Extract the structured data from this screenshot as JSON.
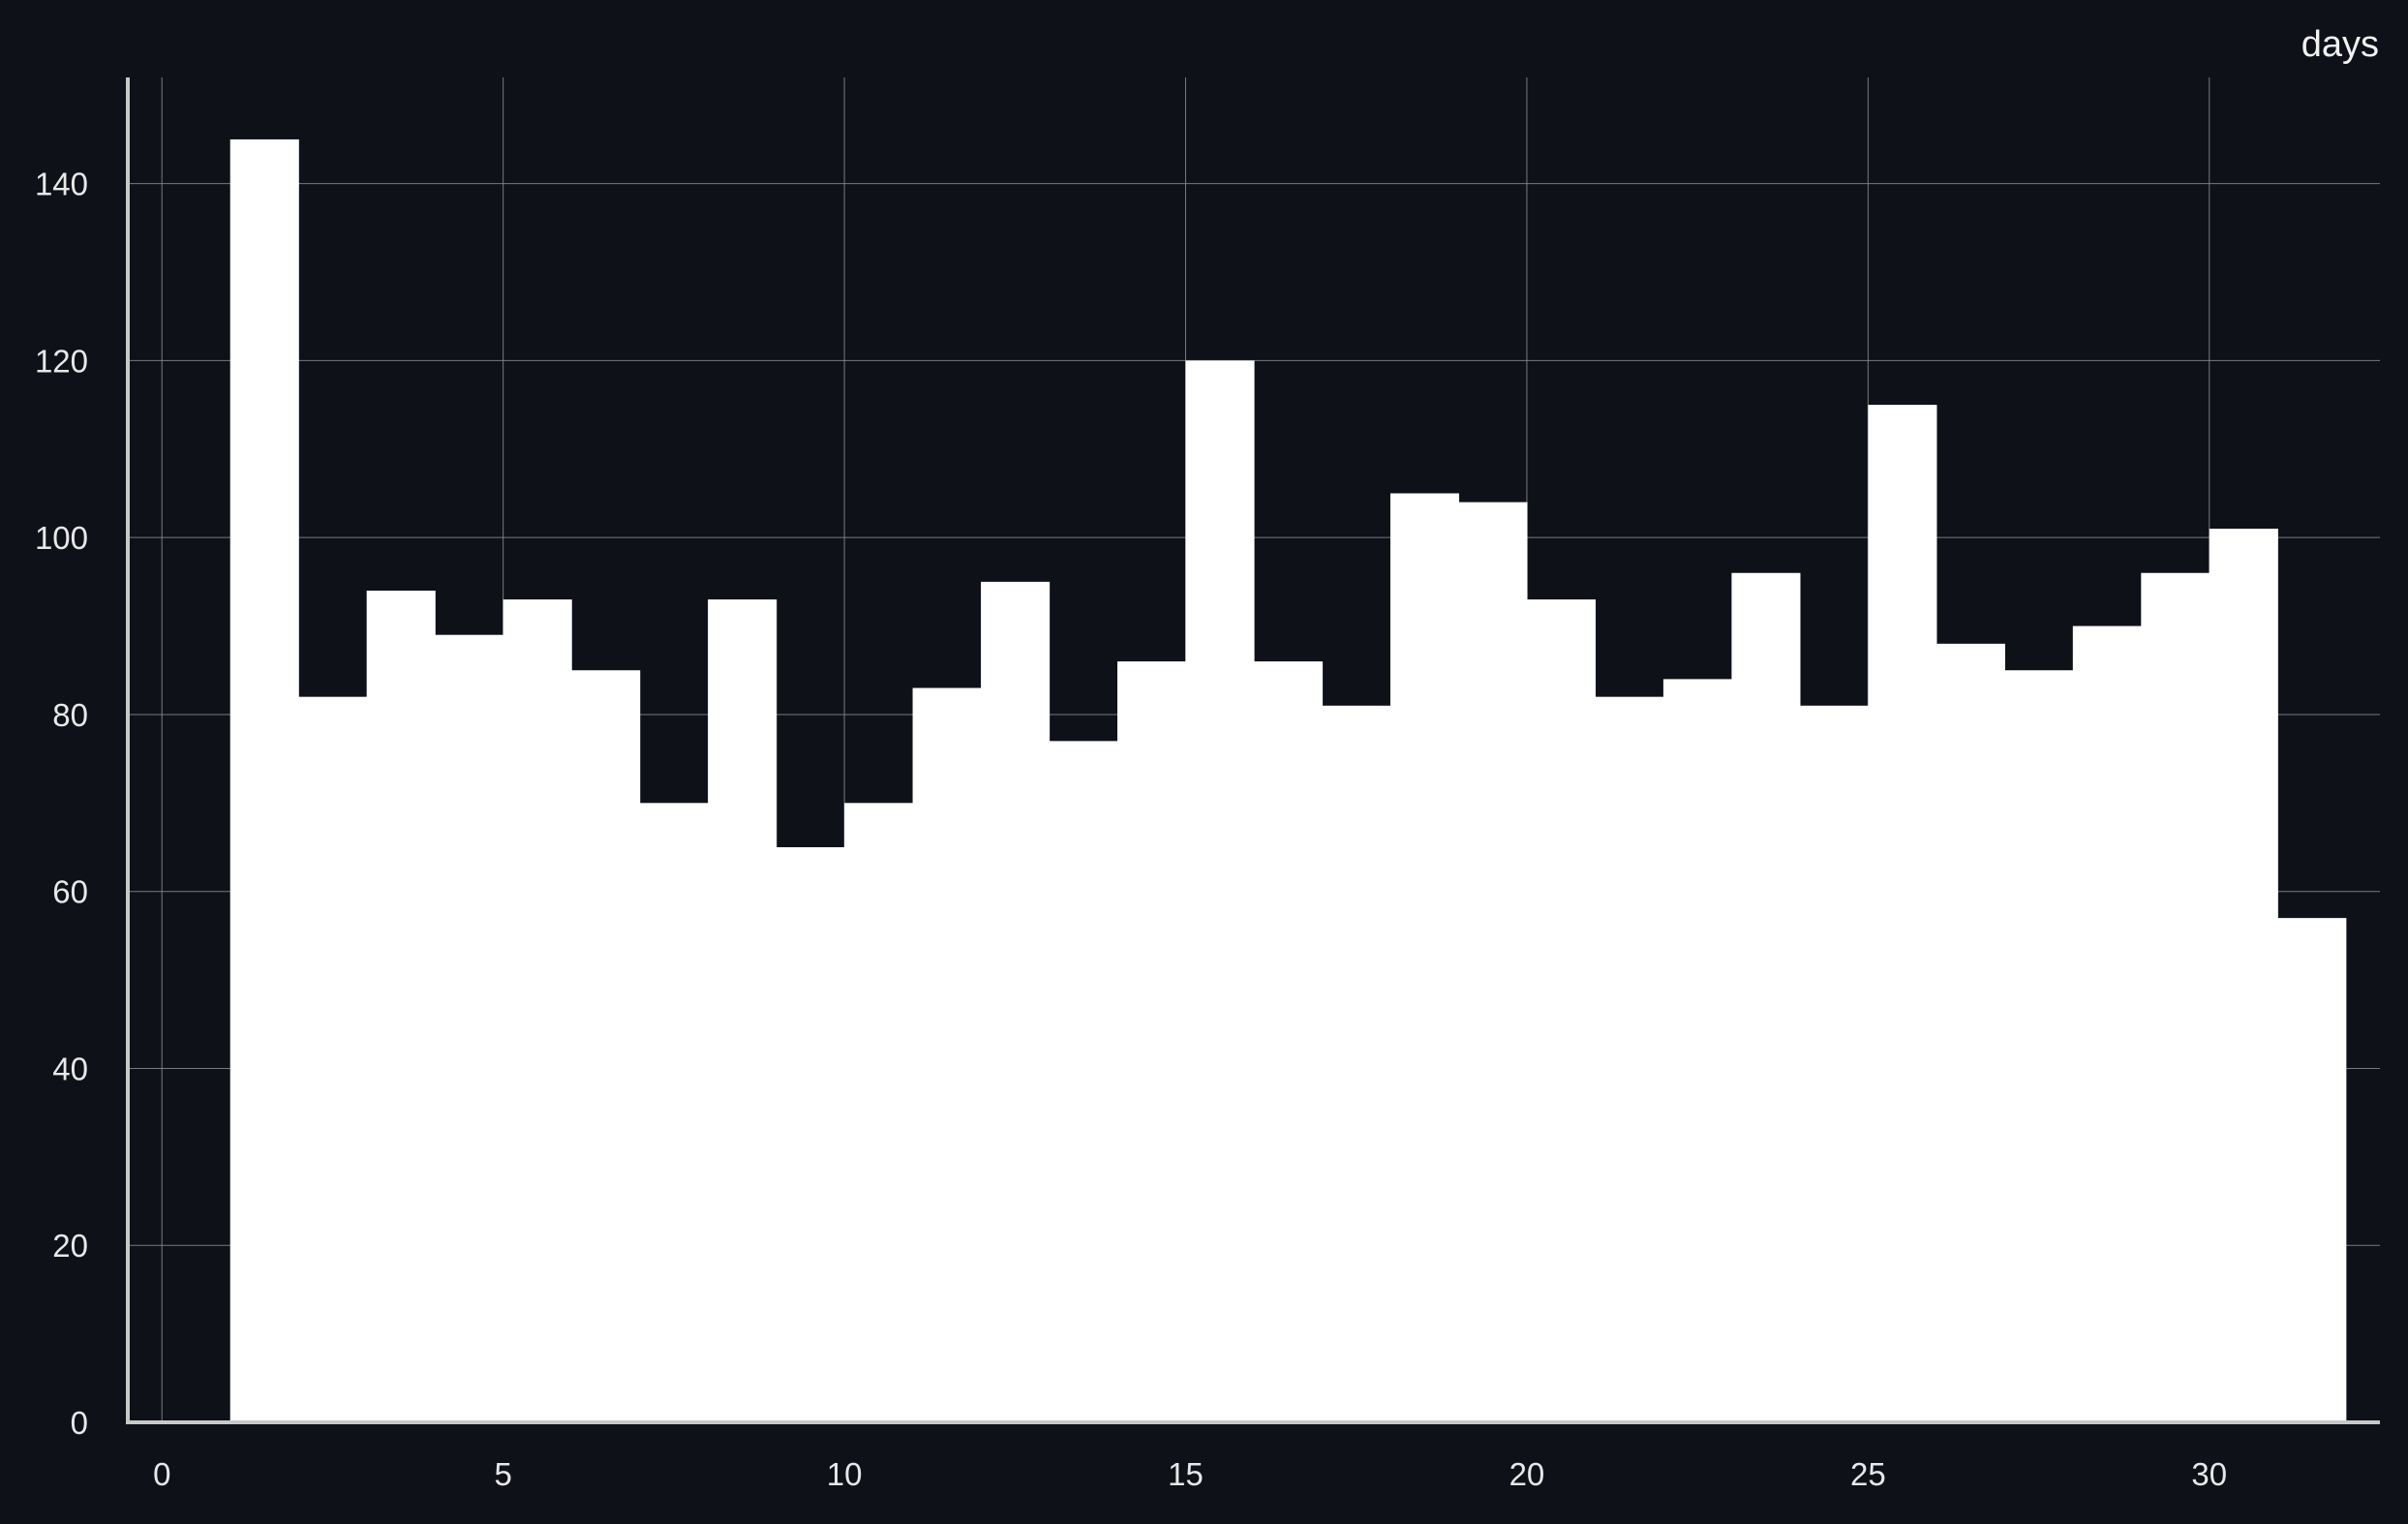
{
  "chart_data": {
    "type": "bar",
    "title": "",
    "xlabel": "days",
    "ylabel": "",
    "bin_width": 1,
    "bins": [
      {
        "start": 1,
        "end": 2,
        "count": 145
      },
      {
        "start": 2,
        "end": 3,
        "count": 82
      },
      {
        "start": 3,
        "end": 4,
        "count": 94
      },
      {
        "start": 4,
        "end": 5,
        "count": 89
      },
      {
        "start": 5,
        "end": 6,
        "count": 93
      },
      {
        "start": 6,
        "end": 7,
        "count": 85
      },
      {
        "start": 7,
        "end": 8,
        "count": 70
      },
      {
        "start": 8,
        "end": 9,
        "count": 93
      },
      {
        "start": 9,
        "end": 10,
        "count": 65
      },
      {
        "start": 10,
        "end": 11,
        "count": 70
      },
      {
        "start": 11,
        "end": 12,
        "count": 83
      },
      {
        "start": 12,
        "end": 13,
        "count": 95
      },
      {
        "start": 13,
        "end": 14,
        "count": 77
      },
      {
        "start": 14,
        "end": 15,
        "count": 86
      },
      {
        "start": 15,
        "end": 16,
        "count": 120
      },
      {
        "start": 16,
        "end": 17,
        "count": 86
      },
      {
        "start": 17,
        "end": 18,
        "count": 81
      },
      {
        "start": 18,
        "end": 19,
        "count": 105
      },
      {
        "start": 19,
        "end": 20,
        "count": 104
      },
      {
        "start": 20,
        "end": 21,
        "count": 93
      },
      {
        "start": 21,
        "end": 22,
        "count": 82
      },
      {
        "start": 22,
        "end": 23,
        "count": 84
      },
      {
        "start": 23,
        "end": 24,
        "count": 96
      },
      {
        "start": 24,
        "end": 25,
        "count": 81
      },
      {
        "start": 25,
        "end": 26,
        "count": 115
      },
      {
        "start": 26,
        "end": 27,
        "count": 88
      },
      {
        "start": 27,
        "end": 28,
        "count": 85
      },
      {
        "start": 28,
        "end": 29,
        "count": 90
      },
      {
        "start": 29,
        "end": 30,
        "count": 96
      },
      {
        "start": 30,
        "end": 31,
        "count": 101
      },
      {
        "start": 31,
        "end": 32,
        "count": 57
      }
    ],
    "xlim": [
      -0.5,
      32.5
    ],
    "ylim": [
      0,
      152
    ],
    "x_ticks": [
      0,
      5,
      10,
      15,
      20,
      25,
      30
    ],
    "y_ticks": [
      0,
      20,
      40,
      60,
      80,
      100,
      120,
      140
    ],
    "grid": true,
    "legend": "none",
    "colors": {
      "background": "#0e1118",
      "bars": "#ffffff",
      "grid": "#8a8d94",
      "axis": "#c8c8c8",
      "text": "#e8e8e8"
    }
  }
}
